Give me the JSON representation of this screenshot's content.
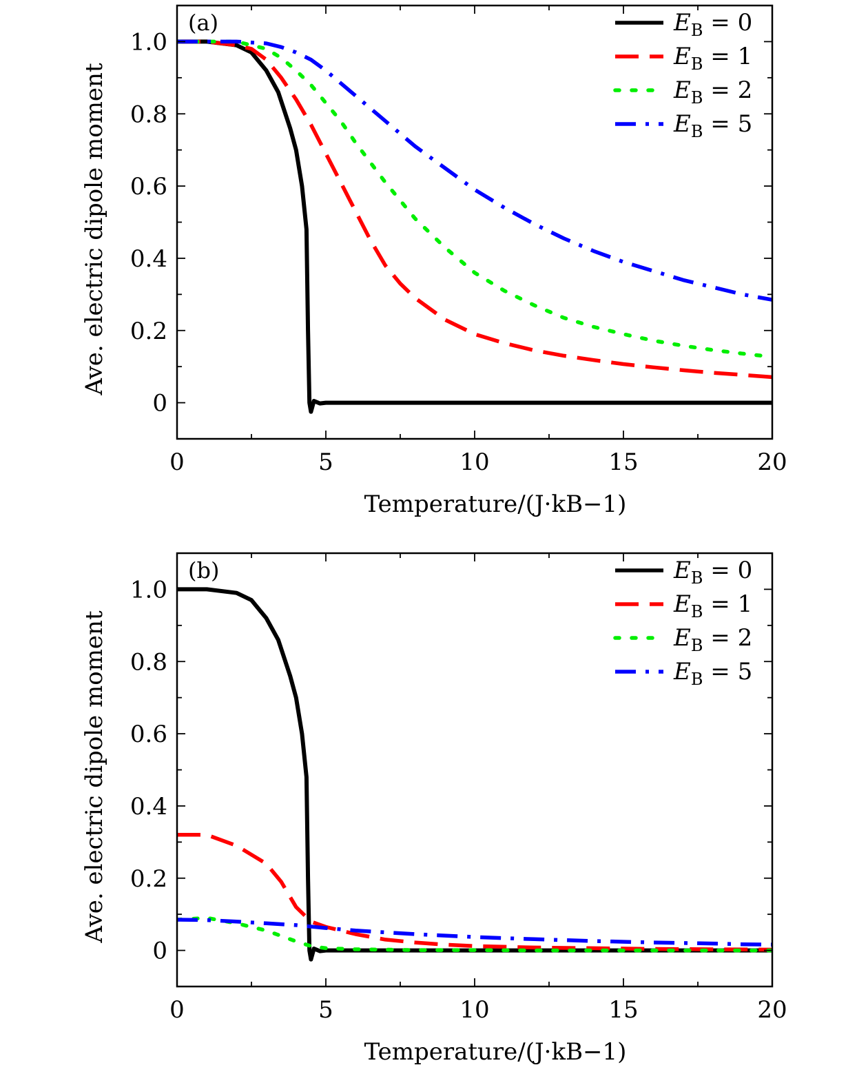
{
  "chart_data": [
    {
      "type": "line",
      "panel_label": "(a)",
      "xlabel": "Temperature/(J·kB−1)",
      "ylabel": "Ave. electric dipole moment",
      "xlim": [
        0,
        20
      ],
      "ylim": [
        -0.1,
        1.1
      ],
      "xticks": [
        "0",
        "5",
        "10",
        "15",
        "20"
      ],
      "yticks": [
        "0",
        "0.2",
        "0.4",
        "0.6",
        "0.8",
        "1.0"
      ],
      "grid": false,
      "legend_position": "top-right",
      "series": [
        {
          "name": "EB = 0",
          "color": "#000000",
          "style": "solid",
          "x": [
            0,
            1,
            2,
            2.5,
            3,
            3.4,
            3.8,
            4.0,
            4.2,
            4.35,
            4.4,
            4.45,
            4.5,
            4.6,
            4.8,
            5,
            6,
            8,
            10,
            15,
            20
          ],
          "y": [
            1.0,
            1.0,
            0.99,
            0.97,
            0.92,
            0.86,
            0.76,
            0.7,
            0.6,
            0.48,
            0.2,
            0.0,
            -0.025,
            0.005,
            -0.002,
            0.0,
            0.0,
            0.0,
            0.0,
            0.0,
            0.0
          ]
        },
        {
          "name": "EB = 1",
          "color": "#ff0000",
          "style": "dashed",
          "x": [
            0,
            1,
            2,
            2.5,
            3,
            3.5,
            4,
            4.5,
            5,
            5.5,
            6,
            6.5,
            7,
            7.5,
            8,
            9,
            10,
            11,
            12,
            13,
            14,
            15,
            16,
            17,
            18,
            19,
            20
          ],
          "y": [
            1.0,
            1.0,
            0.99,
            0.98,
            0.95,
            0.9,
            0.84,
            0.77,
            0.69,
            0.61,
            0.53,
            0.45,
            0.38,
            0.33,
            0.29,
            0.23,
            0.19,
            0.165,
            0.145,
            0.13,
            0.118,
            0.107,
            0.098,
            0.09,
            0.083,
            0.077,
            0.071
          ]
        },
        {
          "name": "EB = 2",
          "color": "#00ee00",
          "style": "dotted",
          "x": [
            0,
            1,
            2,
            3,
            3.5,
            4,
            4.5,
            5,
            5.5,
            6,
            7,
            8,
            9,
            10,
            11,
            12,
            13,
            14,
            15,
            16,
            17,
            18,
            19,
            20
          ],
          "y": [
            1.0,
            1.0,
            1.0,
            0.98,
            0.955,
            0.92,
            0.88,
            0.83,
            0.78,
            0.72,
            0.61,
            0.51,
            0.43,
            0.36,
            0.31,
            0.27,
            0.235,
            0.21,
            0.19,
            0.172,
            0.158,
            0.146,
            0.136,
            0.127
          ]
        },
        {
          "name": "EB = 5",
          "color": "#0000ff",
          "style": "dashdot",
          "x": [
            0,
            1,
            2,
            3,
            3.5,
            4,
            4.5,
            5,
            6,
            7,
            8,
            9,
            10,
            11,
            12,
            13,
            14,
            15,
            16,
            17,
            18,
            19,
            20
          ],
          "y": [
            1.0,
            1.0,
            1.0,
            0.995,
            0.985,
            0.97,
            0.95,
            0.92,
            0.85,
            0.78,
            0.71,
            0.65,
            0.59,
            0.54,
            0.495,
            0.455,
            0.42,
            0.39,
            0.365,
            0.34,
            0.32,
            0.3,
            0.285
          ]
        }
      ]
    },
    {
      "type": "line",
      "panel_label": "(b)",
      "xlabel": "Temperature/(J·kB−1)",
      "ylabel": "Ave. electric dipole moment",
      "xlim": [
        0,
        20
      ],
      "ylim": [
        -0.1,
        1.1
      ],
      "xticks": [
        "0",
        "5",
        "10",
        "15",
        "20"
      ],
      "yticks": [
        "0",
        "0.2",
        "0.4",
        "0.6",
        "0.8",
        "1.0"
      ],
      "grid": false,
      "legend_position": "top-right",
      "series": [
        {
          "name": "EB = 0",
          "color": "#000000",
          "style": "solid",
          "x": [
            0,
            1,
            2,
            2.5,
            3,
            3.4,
            3.8,
            4.0,
            4.2,
            4.35,
            4.4,
            4.45,
            4.5,
            4.6,
            4.8,
            5,
            6,
            8,
            10,
            15,
            20
          ],
          "y": [
            1.0,
            1.0,
            0.99,
            0.97,
            0.92,
            0.86,
            0.76,
            0.7,
            0.6,
            0.48,
            0.2,
            0.0,
            -0.025,
            0.005,
            -0.002,
            0.0,
            0.0,
            0.0,
            0.0,
            0.0,
            0.0
          ]
        },
        {
          "name": "EB = 1",
          "color": "#ff0000",
          "style": "dashed",
          "x": [
            0,
            0.5,
            1,
            2,
            3,
            3.5,
            4,
            4.5,
            5,
            6,
            7,
            8,
            9,
            10,
            12,
            14,
            16,
            18,
            20
          ],
          "y": [
            0.32,
            0.32,
            0.32,
            0.29,
            0.24,
            0.19,
            0.12,
            0.08,
            0.065,
            0.045,
            0.03,
            0.022,
            0.016,
            0.012,
            0.008,
            0.006,
            0.004,
            0.003,
            0.002
          ]
        },
        {
          "name": "EB = 2",
          "color": "#00ee00",
          "style": "dotted",
          "x": [
            0,
            1,
            2,
            3,
            3.5,
            4,
            4.5,
            5,
            6,
            7,
            8,
            10,
            12,
            14,
            16,
            18,
            20
          ],
          "y": [
            0.085,
            0.09,
            0.075,
            0.055,
            0.04,
            0.025,
            0.012,
            0.006,
            0.003,
            0.002,
            0.001,
            0.001,
            0.0,
            0.0,
            0.0,
            0.0,
            0.0
          ]
        },
        {
          "name": "EB = 5",
          "color": "#0000ff",
          "style": "dashdot",
          "x": [
            0,
            1,
            2,
            3,
            4,
            5,
            6,
            7,
            8,
            9,
            10,
            12,
            14,
            16,
            18,
            19,
            20
          ],
          "y": [
            0.085,
            0.084,
            0.08,
            0.075,
            0.07,
            0.062,
            0.055,
            0.05,
            0.045,
            0.041,
            0.037,
            0.031,
            0.026,
            0.022,
            0.019,
            0.017,
            0.016
          ]
        }
      ]
    }
  ]
}
